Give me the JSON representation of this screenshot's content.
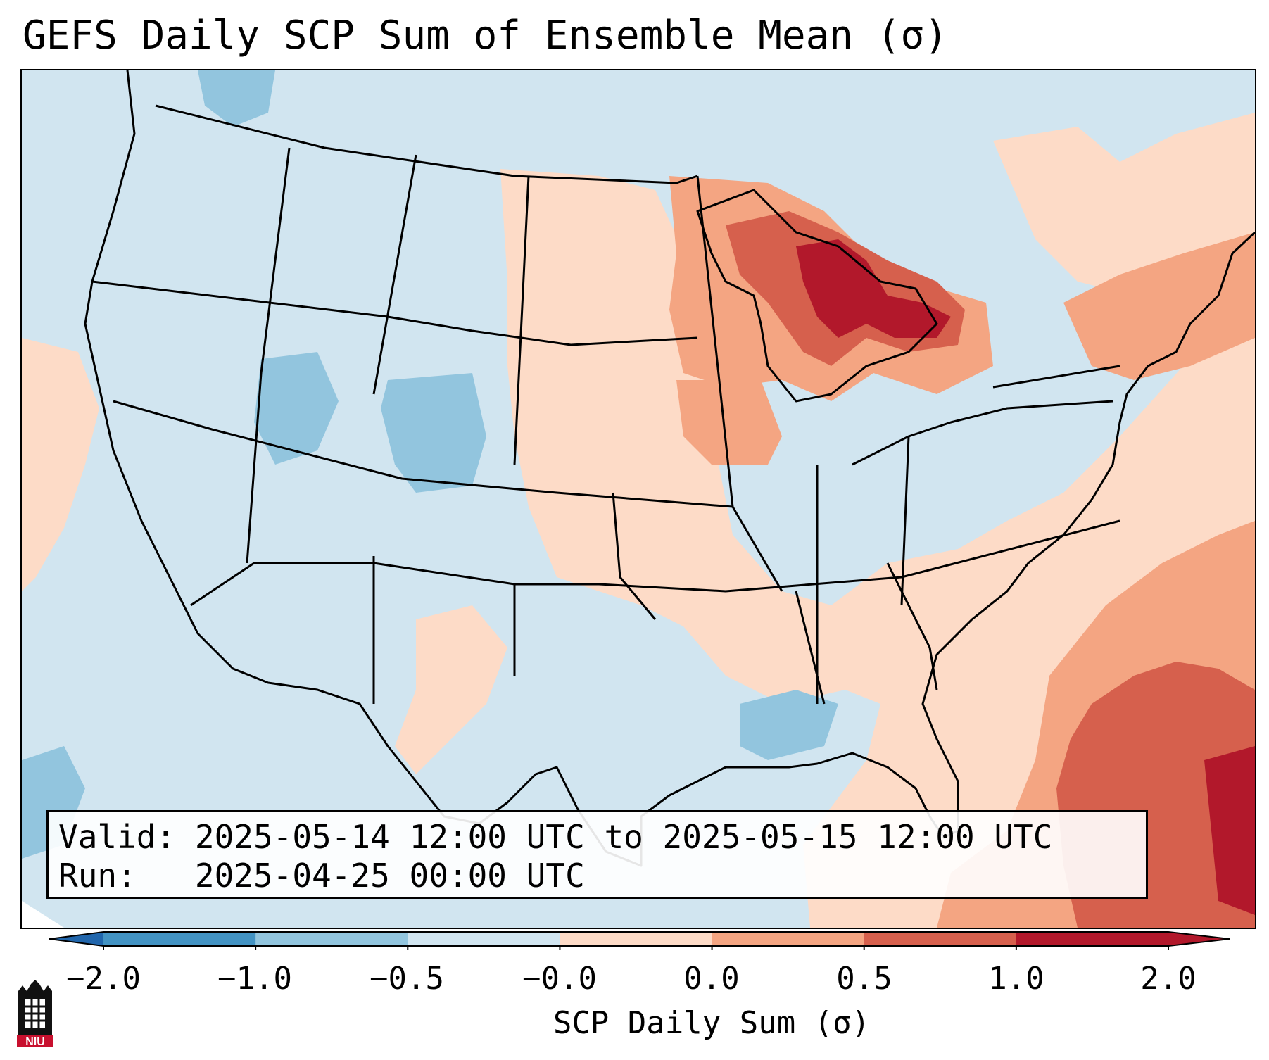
{
  "title": "GEFS Daily SCP Sum of Ensemble Mean (σ)",
  "info": {
    "valid_label": "Valid:",
    "valid_value": "2025-05-14 12:00 UTC to 2025-05-15 12:00 UTC",
    "run_label": "Run:",
    "run_value": "2025-04-25 00:00 UTC"
  },
  "colorbar": {
    "label": "SCP Daily Sum (σ)",
    "ticks": [
      "−2.0",
      "−1.0",
      "−0.5",
      "−0.0",
      "0.0",
      "0.5",
      "1.0",
      "2.0"
    ],
    "colors": [
      "#4393c3",
      "#92c5de",
      "#d1e5f0",
      "#fddbc7",
      "#f4a582",
      "#d6604d",
      "#b2182b"
    ],
    "extend_low_color": "#2166ac",
    "extend_high_color": "#b2182b"
  },
  "colors": {
    "light_blue": "#d1e5f0",
    "mid_blue": "#92c5de",
    "light_red": "#fddbc7",
    "mid_red": "#f4a582",
    "red": "#d6604d",
    "dark_red": "#b2182b"
  },
  "logo": {
    "text": "NIU",
    "icon": "university-tower-icon"
  }
}
